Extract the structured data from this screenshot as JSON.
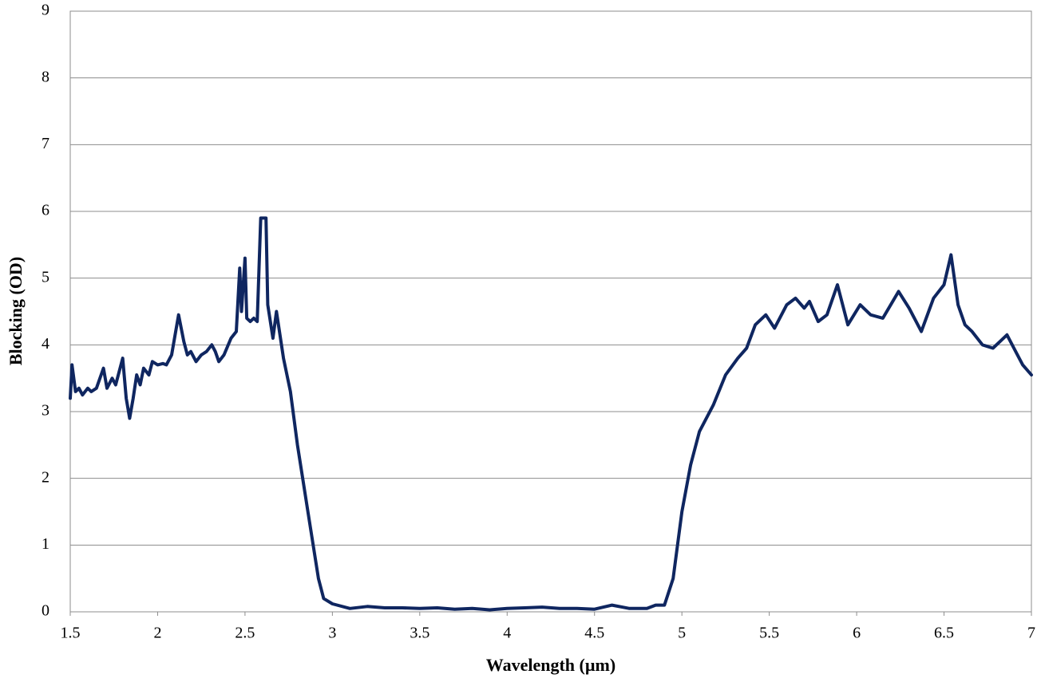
{
  "chart_data": {
    "type": "line",
    "x_label": "Wavelength (µm)",
    "y_label": "Blocking (OD)",
    "xlim": [
      1.5,
      7
    ],
    "ylim": [
      0,
      9
    ],
    "xticks": [
      1.5,
      2,
      2.5,
      3,
      3.5,
      4,
      4.5,
      5,
      5.5,
      6,
      6.5,
      7
    ],
    "yticks": [
      0,
      1,
      2,
      3,
      4,
      5,
      6,
      7,
      8,
      9
    ],
    "grid": true,
    "series": [
      {
        "name": "Blocking",
        "color": "#0f2660",
        "x": [
          1.5,
          1.51,
          1.53,
          1.55,
          1.57,
          1.6,
          1.62,
          1.65,
          1.69,
          1.71,
          1.74,
          1.76,
          1.8,
          1.82,
          1.84,
          1.86,
          1.88,
          1.9,
          1.92,
          1.95,
          1.97,
          2.0,
          2.03,
          2.05,
          2.08,
          2.12,
          2.15,
          2.17,
          2.19,
          2.22,
          2.25,
          2.28,
          2.31,
          2.33,
          2.35,
          2.38,
          2.42,
          2.45,
          2.47,
          2.48,
          2.5,
          2.51,
          2.53,
          2.55,
          2.57,
          2.59,
          2.62,
          2.63,
          2.66,
          2.68,
          2.7,
          2.72,
          2.76,
          2.8,
          2.86,
          2.92,
          2.95,
          3.0,
          3.1,
          3.2,
          3.3,
          3.4,
          3.5,
          3.6,
          3.7,
          3.8,
          3.9,
          4.0,
          4.1,
          4.2,
          4.3,
          4.4,
          4.5,
          4.6,
          4.7,
          4.8,
          4.85,
          4.9,
          4.95,
          5.0,
          5.05,
          5.1,
          5.18,
          5.25,
          5.32,
          5.37,
          5.42,
          5.48,
          5.53,
          5.6,
          5.65,
          5.7,
          5.73,
          5.78,
          5.83,
          5.89,
          5.95,
          6.02,
          6.08,
          6.15,
          6.24,
          6.3,
          6.37,
          6.44,
          6.5,
          6.54,
          6.58,
          6.62,
          6.66,
          6.72,
          6.78,
          6.82,
          6.86,
          6.9,
          6.95,
          7.0
        ],
        "values": [
          3.2,
          3.7,
          3.3,
          3.35,
          3.25,
          3.35,
          3.3,
          3.35,
          3.65,
          3.35,
          3.5,
          3.4,
          3.8,
          3.2,
          2.9,
          3.2,
          3.55,
          3.4,
          3.65,
          3.55,
          3.75,
          3.7,
          3.72,
          3.7,
          3.85,
          4.45,
          4.05,
          3.85,
          3.9,
          3.75,
          3.85,
          3.9,
          4.0,
          3.9,
          3.75,
          3.85,
          4.1,
          4.2,
          5.15,
          4.5,
          5.3,
          4.4,
          4.35,
          4.4,
          4.35,
          5.9,
          5.9,
          4.6,
          4.1,
          4.5,
          4.15,
          3.8,
          3.3,
          2.5,
          1.5,
          0.5,
          0.2,
          0.12,
          0.05,
          0.08,
          0.06,
          0.06,
          0.05,
          0.06,
          0.04,
          0.05,
          0.03,
          0.05,
          0.06,
          0.07,
          0.05,
          0.05,
          0.04,
          0.1,
          0.05,
          0.05,
          0.1,
          0.1,
          0.5,
          1.5,
          2.2,
          2.7,
          3.1,
          3.55,
          3.8,
          3.95,
          4.3,
          4.45,
          4.25,
          4.6,
          4.7,
          4.55,
          4.65,
          4.35,
          4.45,
          4.9,
          4.3,
          4.6,
          4.45,
          4.4,
          4.8,
          4.55,
          4.2,
          4.7,
          4.9,
          5.35,
          4.6,
          4.3,
          4.2,
          4.0,
          3.95,
          4.05,
          4.15,
          3.95,
          3.7,
          3.55
        ]
      }
    ]
  }
}
